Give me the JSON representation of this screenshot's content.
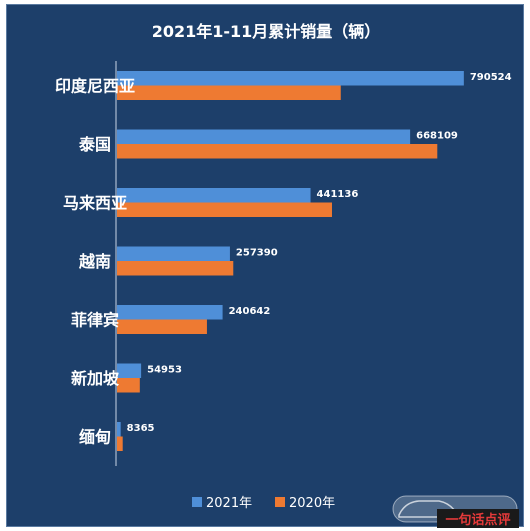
{
  "chart_data": {
    "type": "bar",
    "orientation": "horizontal",
    "title": "2021年1-11月累计销量（辆）",
    "categories": [
      "印度尼西亚",
      "泰国",
      "马来西亚",
      "越南",
      "菲律宾",
      "新加坡",
      "缅甸"
    ],
    "series": [
      {
        "name": "2021年",
        "values": [
          790524,
          668109,
          441136,
          257390,
          240642,
          54953,
          8365
        ],
        "color": "#4f8fd8"
      },
      {
        "name": "2020年",
        "values": [
          510000,
          730000,
          490000,
          265000,
          205000,
          52000,
          13000
        ],
        "color": "#ee7a32"
      }
    ],
    "data_labels_series": "2021年",
    "xlim": [
      0,
      800000
    ],
    "grid": false,
    "legend_position": "bottom"
  },
  "watermark": {
    "text": "一句话点评"
  },
  "colors": {
    "background": "#1d3f6a",
    "axis": "#c9d6e6"
  }
}
